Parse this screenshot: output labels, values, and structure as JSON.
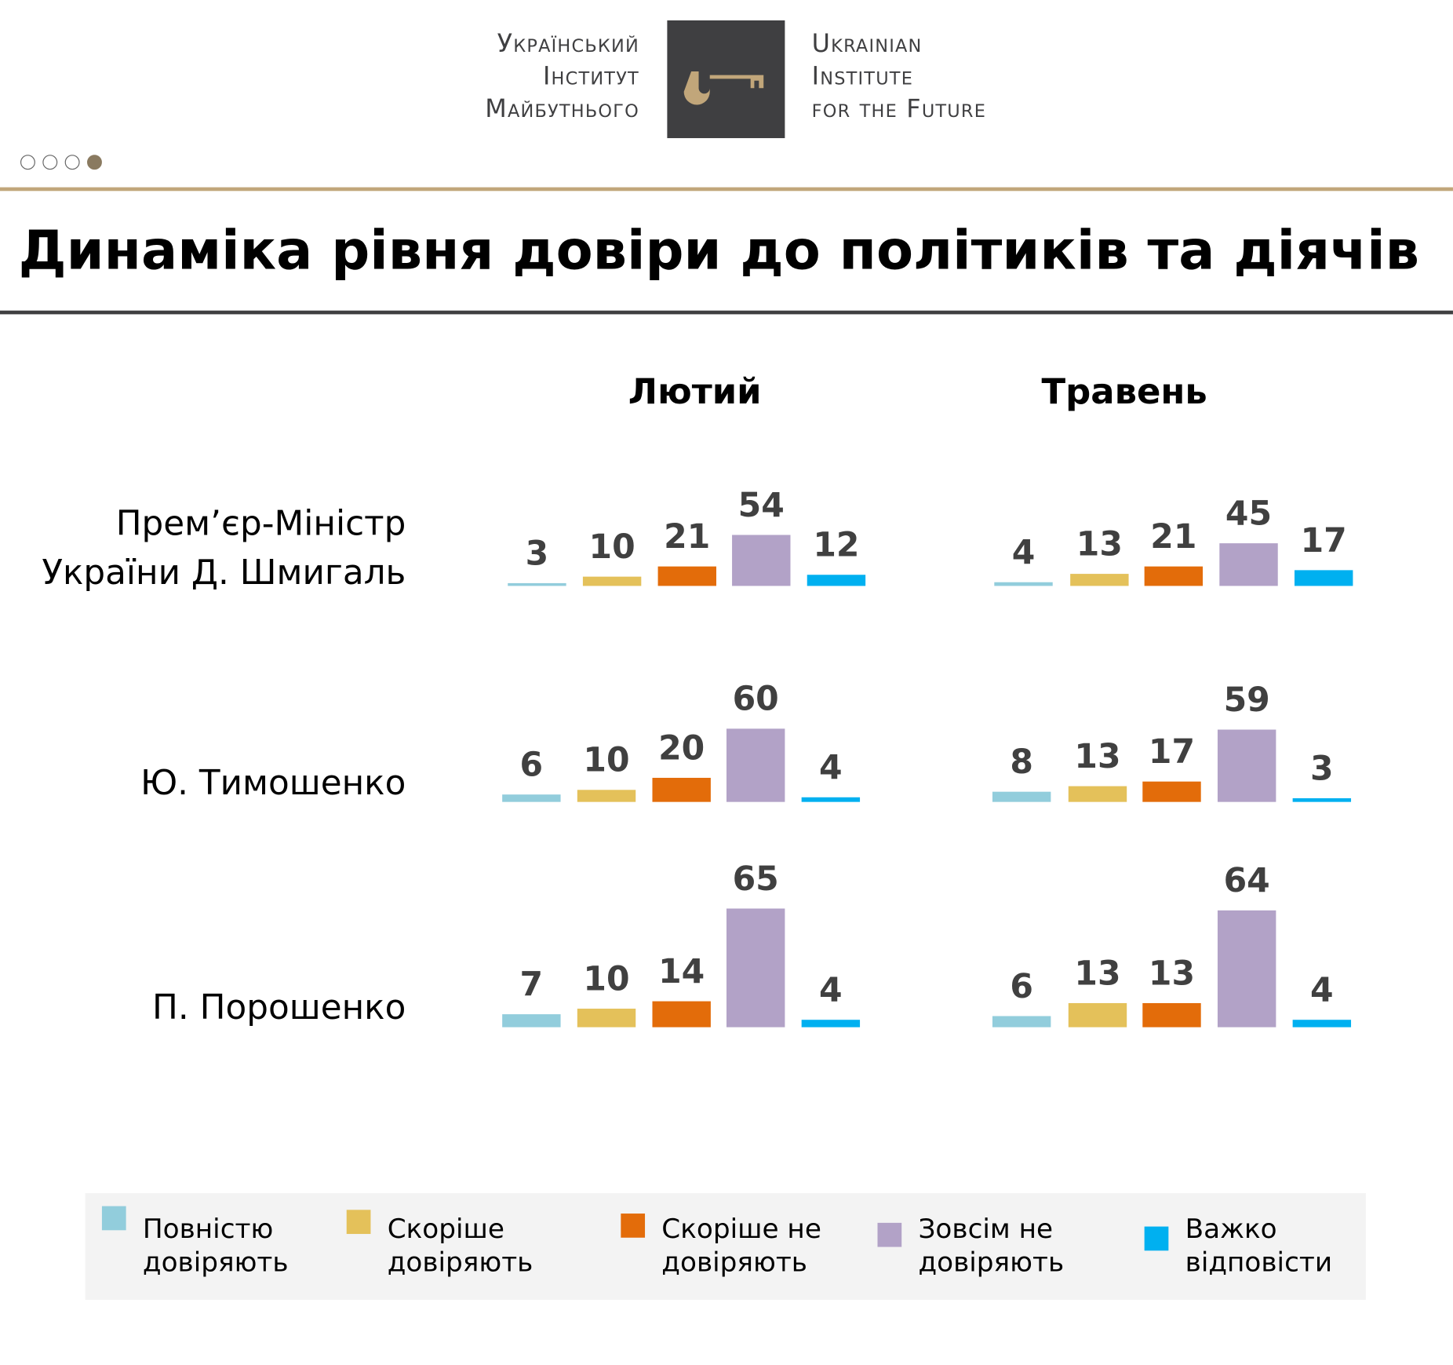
{
  "header": {
    "logo_ua": [
      "Український",
      "Інститут",
      "Майбутнього"
    ],
    "logo_en": [
      "Ukrainian",
      "Institute",
      "for the Future"
    ],
    "page_dots": {
      "total": 4,
      "active": 4
    }
  },
  "title": "Динаміка рівня довіри до політиків та діячів",
  "colors": {
    "brand_gold": "#c1a67a",
    "dark": "#3f3f41"
  },
  "chart_data": {
    "type": "bar",
    "title": "Динаміка рівня довіри до політиків та діячів",
    "periods": [
      "Лютий",
      "Травень"
    ],
    "legend_placement": "bottom",
    "series": [
      {
        "name": "Повністю довіряють",
        "color": "#92cddc"
      },
      {
        "name": "Скоріше довіряють",
        "color": "#e4c15a"
      },
      {
        "name": "Скоріше не довіряють",
        "color": "#e36c0a"
      },
      {
        "name": "Зовсім не довіряють",
        "color": "#b2a2c7"
      },
      {
        "name": "Важко відповісти",
        "color": "#00b0f0"
      }
    ],
    "rows": [
      {
        "label": [
          "Прем’єр-Міністр",
          "України Д. Шмигаль"
        ],
        "values": [
          [
            3,
            10,
            21,
            54,
            12
          ],
          [
            4,
            13,
            21,
            45,
            17
          ]
        ]
      },
      {
        "label": [
          "Ю. Тимошенко"
        ],
        "values": [
          [
            6,
            10,
            20,
            60,
            4
          ],
          [
            8,
            13,
            17,
            59,
            3
          ]
        ]
      },
      {
        "label": [
          "П. Порошенко"
        ],
        "values": [
          [
            7,
            10,
            14,
            65,
            4
          ],
          [
            6,
            13,
            13,
            64,
            4
          ]
        ]
      }
    ]
  }
}
